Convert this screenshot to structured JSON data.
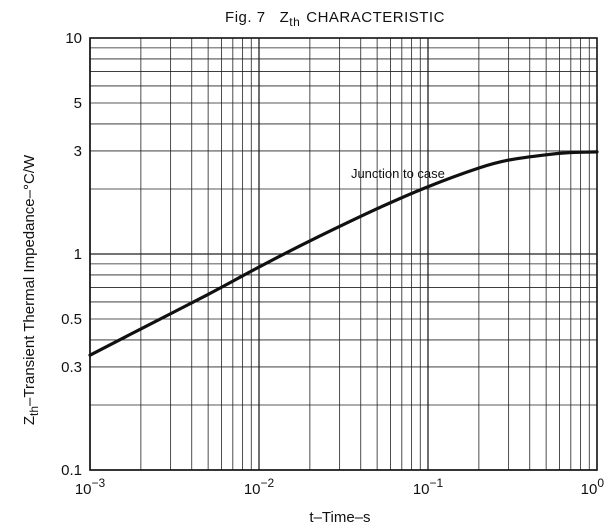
{
  "chart_data": {
    "type": "line",
    "title_prefix": "Fig. 7",
    "title_symbol": "Z",
    "title_subscript": "th",
    "title_suffix": "CHARACTERISTIC",
    "xlabel": "t–Time–s",
    "ylabel_symbol": "Z",
    "ylabel_subscript": "th",
    "ylabel_suffix": "–Transient Thermal Impedance–°C/W",
    "x_scale": "log",
    "y_scale": "log",
    "xlim": [
      0.001,
      1
    ],
    "ylim": [
      0.1,
      10
    ],
    "grid": true,
    "x_ticks": [
      {
        "value": 0.001,
        "base": "10",
        "exp": "−3"
      },
      {
        "value": 0.01,
        "base": "10",
        "exp": "−2"
      },
      {
        "value": 0.1,
        "base": "10",
        "exp": "−1"
      },
      {
        "value": 1,
        "base": "10",
        "exp": "0"
      }
    ],
    "y_ticks": [
      {
        "value": 0.1,
        "label": "0.1"
      },
      {
        "value": 0.3,
        "label": "0.3"
      },
      {
        "value": 0.5,
        "label": "0.5"
      },
      {
        "value": 1,
        "label": "1"
      },
      {
        "value": 3,
        "label": "3"
      },
      {
        "value": 5,
        "label": "5"
      },
      {
        "value": 10,
        "label": "10"
      }
    ],
    "annotations": [
      {
        "text": "Junction to case",
        "x": 0.035,
        "y": 2.25
      }
    ],
    "series": [
      {
        "x": [
          0.001,
          0.002,
          0.005,
          0.01,
          0.02,
          0.05,
          0.1,
          0.2,
          0.3,
          0.5,
          0.7,
          1.0
        ],
        "y": [
          0.34,
          0.45,
          0.65,
          0.87,
          1.15,
          1.62,
          2.05,
          2.5,
          2.72,
          2.88,
          2.95,
          2.97
        ]
      }
    ]
  }
}
